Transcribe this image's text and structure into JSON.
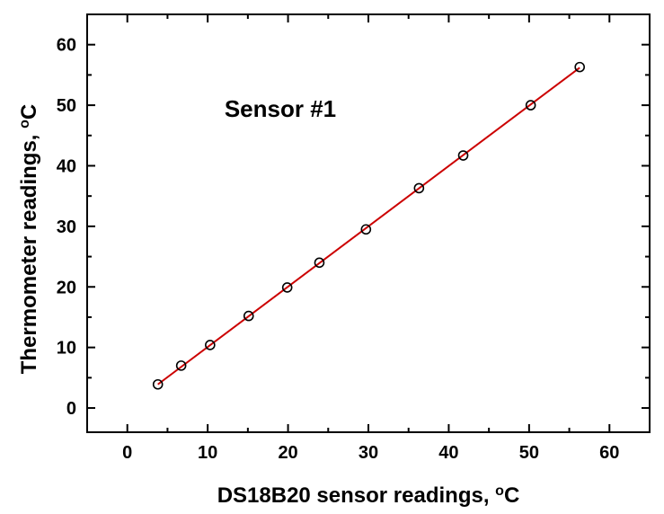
{
  "chart_data": {
    "type": "scatter",
    "annotation": "Sensor #1",
    "xlabel": {
      "main": "DS18B20 sensor readings, ",
      "sup": "o",
      "unit": "C"
    },
    "ylabel": {
      "main": "Thermometer readings, ",
      "sup": "o",
      "unit": "C"
    },
    "xlim": [
      -5,
      65
    ],
    "ylim": [
      -4,
      65
    ],
    "xticks": [
      0,
      10,
      20,
      30,
      40,
      50,
      60
    ],
    "yticks": [
      0,
      10,
      20,
      30,
      40,
      50,
      60
    ],
    "grid": false,
    "series": [
      {
        "marker": "open-circle",
        "color": "#000000",
        "points": [
          {
            "x": 3.8,
            "y": 3.9
          },
          {
            "x": 6.7,
            "y": 7.0
          },
          {
            "x": 10.3,
            "y": 10.4
          },
          {
            "x": 15.1,
            "y": 15.2
          },
          {
            "x": 19.9,
            "y": 19.9
          },
          {
            "x": 23.9,
            "y": 24.0
          },
          {
            "x": 29.7,
            "y": 29.5
          },
          {
            "x": 36.3,
            "y": 36.3
          },
          {
            "x": 41.8,
            "y": 41.7
          },
          {
            "x": 50.2,
            "y": 50.0
          },
          {
            "x": 56.3,
            "y": 56.3
          }
        ]
      }
    ],
    "fit_line": {
      "color": "#cc0000",
      "x": [
        3.8,
        56.3
      ],
      "y": [
        3.9,
        56.2
      ]
    }
  }
}
